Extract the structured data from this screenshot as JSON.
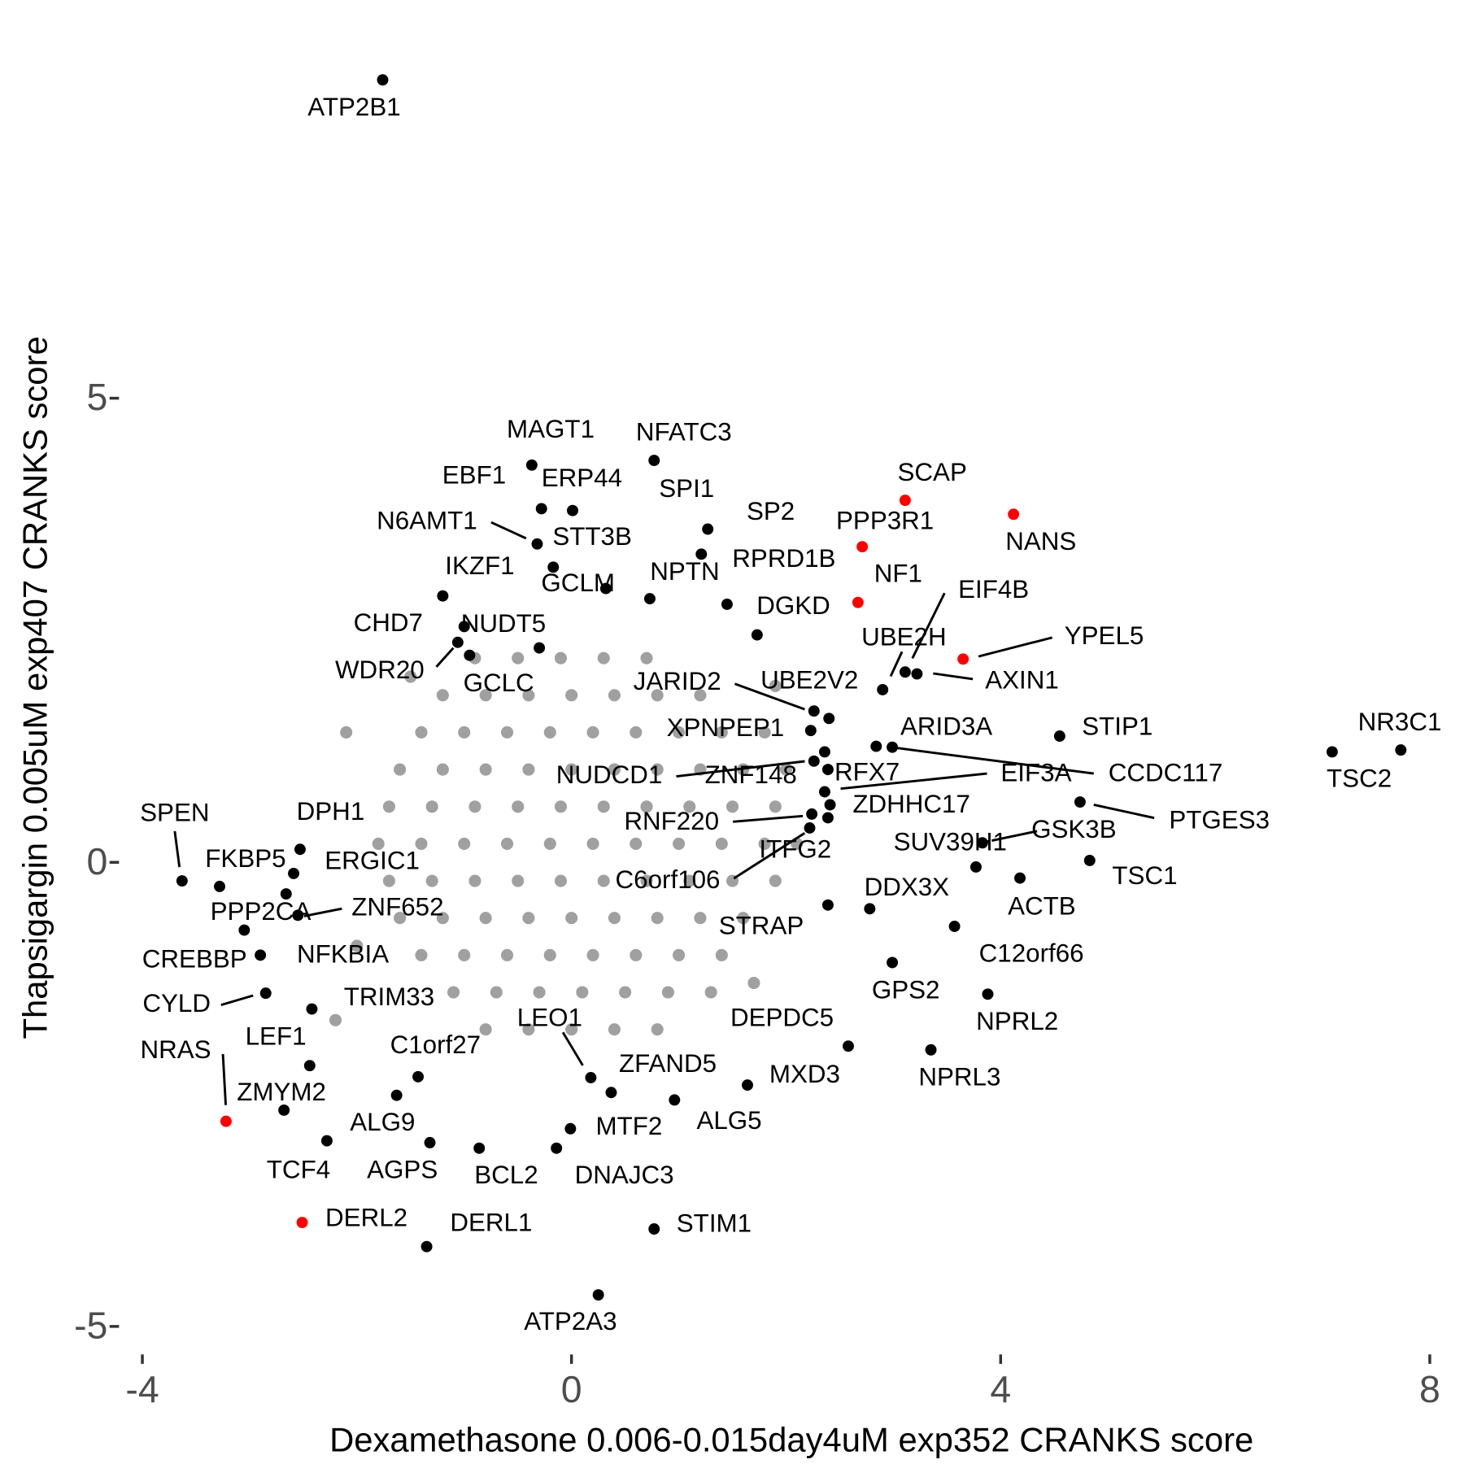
{
  "chart_data": {
    "type": "scatter",
    "x_label": "Dexamethasone 0.006-0.015day4uM exp352 CRANKS score",
    "y_label": "Thapsigargin 0.005uM exp407 CRANKS score",
    "xlim": [
      -4.2,
      8.2
    ],
    "ylim": [
      -5.2,
      8.7
    ],
    "xticks": [
      -4,
      0,
      4,
      8
    ],
    "yticks": [
      -5,
      0,
      5
    ],
    "grid": false,
    "background_points": {
      "color": "#a0a0a0",
      "x": [
        -0.9,
        -0.5,
        -0.1,
        0.3,
        0.7,
        -1.2,
        -0.8,
        -0.4,
        0,
        0.4,
        0.8,
        1.2,
        -1.4,
        -1.0,
        -0.6,
        -0.2,
        0.2,
        0.6,
        1.0,
        1.4,
        1.8,
        -1.6,
        -1.2,
        -0.8,
        -0.4,
        0,
        0.4,
        0.8,
        1.2,
        1.6,
        2.0,
        -1.7,
        -1.3,
        -0.9,
        -0.5,
        -0.1,
        0.3,
        0.7,
        1.1,
        1.5,
        1.9,
        -1.8,
        -1.4,
        -1.0,
        -0.6,
        -0.2,
        0.2,
        0.6,
        1.0,
        1.4,
        1.8,
        2.1,
        -1.7,
        -1.3,
        -0.9,
        -0.5,
        -0.1,
        0.3,
        0.7,
        1.1,
        1.5,
        1.9,
        -1.6,
        -1.2,
        -0.8,
        -0.4,
        0,
        0.4,
        0.8,
        1.2,
        1.6,
        -1.4,
        -1.0,
        -0.6,
        -0.2,
        0.2,
        0.6,
        1.0,
        1.4,
        -1.1,
        -0.7,
        -0.3,
        0.1,
        0.5,
        0.9,
        1.3,
        -0.8,
        -0.4,
        0,
        0.4,
        0.8,
        -2.1,
        -2.2,
        1.7,
        -1.5,
        1.9,
        -2.0
      ],
      "y": [
        2.2,
        2.2,
        2.2,
        2.2,
        2.2,
        1.8,
        1.8,
        1.8,
        1.8,
        1.8,
        1.8,
        1.8,
        1.4,
        1.4,
        1.4,
        1.4,
        1.4,
        1.4,
        1.4,
        1.4,
        1.4,
        1.0,
        1.0,
        1.0,
        1.0,
        1.0,
        1.0,
        1.0,
        1.0,
        1.0,
        1.0,
        0.6,
        0.6,
        0.6,
        0.6,
        0.6,
        0.6,
        0.6,
        0.6,
        0.6,
        0.6,
        0.2,
        0.2,
        0.2,
        0.2,
        0.2,
        0.2,
        0.2,
        0.2,
        0.2,
        0.2,
        0.2,
        -0.2,
        -0.2,
        -0.2,
        -0.2,
        -0.2,
        -0.2,
        -0.2,
        -0.2,
        -0.2,
        -0.2,
        -0.6,
        -0.6,
        -0.6,
        -0.6,
        -0.6,
        -0.6,
        -0.6,
        -0.6,
        -0.6,
        -1.0,
        -1.0,
        -1.0,
        -1.0,
        -1.0,
        -1.0,
        -1.0,
        -1.0,
        -1.4,
        -1.4,
        -1.4,
        -1.4,
        -1.4,
        -1.4,
        -1.4,
        -1.8,
        -1.8,
        -1.8,
        -1.8,
        -1.8,
        1.4,
        -1.7,
        -1.3,
        2.0,
        1.9,
        -0.9
      ]
    },
    "points": [
      {
        "label": "ATP2B1",
        "x": -1.76,
        "y": 8.43,
        "color": "#000000"
      },
      {
        "label": "MAGT1",
        "x": -0.37,
        "y": 4.28,
        "color": "#000000"
      },
      {
        "label": "NFATC3",
        "x": 0.77,
        "y": 4.33,
        "color": "#000000"
      },
      {
        "label": "EBF1",
        "x": -0.28,
        "y": 3.81,
        "color": "#000000"
      },
      {
        "label": "ERP44",
        "x": 0.01,
        "y": 3.79,
        "color": "#000000"
      },
      {
        "label": "SPI1",
        "x": 1.27,
        "y": 3.59,
        "color": "#000000"
      },
      {
        "label": "SP2",
        "x": 1.21,
        "y": 3.32,
        "color": "#000000"
      },
      {
        "label": "N6AMT1",
        "x": -0.32,
        "y": 3.43,
        "color": "#000000"
      },
      {
        "label": "STT3B",
        "x": -0.17,
        "y": 3.18,
        "color": "#000000"
      },
      {
        "label": "SCAP",
        "x": 3.11,
        "y": 3.9,
        "color": "#ff0000"
      },
      {
        "label": "NANS",
        "x": 4.12,
        "y": 3.75,
        "color": "#ff0000"
      },
      {
        "label": "PPP3R1",
        "x": 2.71,
        "y": 3.4,
        "color": "#ff0000"
      },
      {
        "label": "RPRD1B",
        "x": 1.45,
        "y": 2.78,
        "color": "#000000"
      },
      {
        "label": "NF1",
        "x": 2.67,
        "y": 2.8,
        "color": "#ff0000"
      },
      {
        "label": "IKZF1",
        "x": -1.2,
        "y": 2.87,
        "color": "#000000"
      },
      {
        "label": "GCLM",
        "x": 0.32,
        "y": 2.95,
        "color": "#000000"
      },
      {
        "label": "NPTN",
        "x": 0.73,
        "y": 2.84,
        "color": "#000000"
      },
      {
        "label": "DGKD",
        "x": 1.73,
        "y": 2.45,
        "color": "#000000"
      },
      {
        "label": "EIF4B",
        "x": 3.22,
        "y": 2.03,
        "color": "#000000"
      },
      {
        "label": "CHD7",
        "x": -1.0,
        "y": 2.54,
        "color": "#000000"
      },
      {
        "label": "NUDT5",
        "x": -0.95,
        "y": 2.23,
        "color": "#000000"
      },
      {
        "label": "UBE2H",
        "x": 2.9,
        "y": 1.86,
        "color": "#000000"
      },
      {
        "label": "YPEL5",
        "x": 3.65,
        "y": 2.19,
        "color": "#ff0000"
      },
      {
        "label": "WDR20",
        "x": -1.06,
        "y": 2.37,
        "color": "#000000"
      },
      {
        "label": "GCLC",
        "x": -0.3,
        "y": 2.31,
        "color": "#000000"
      },
      {
        "label": "JARID2",
        "x": 2.26,
        "y": 1.63,
        "color": "#000000"
      },
      {
        "label": "UBE2V2",
        "x": 2.4,
        "y": 1.55,
        "color": "#000000"
      },
      {
        "label": "AXIN1",
        "x": 3.11,
        "y": 2.05,
        "color": "#000000"
      },
      {
        "label": "XPNPEP1",
        "x": 2.23,
        "y": 1.42,
        "color": "#000000"
      },
      {
        "label": "ARID3A",
        "x": 2.84,
        "y": 1.25,
        "color": "#000000"
      },
      {
        "label": "STIP1",
        "x": 4.55,
        "y": 1.36,
        "color": "#000000"
      },
      {
        "label": "NR3C1",
        "x": 7.73,
        "y": 1.21,
        "color": "#000000"
      },
      {
        "label": "TSC2",
        "x": 7.09,
        "y": 1.19,
        "color": "#000000"
      },
      {
        "label": "CCDC117",
        "x": 2.99,
        "y": 1.24,
        "color": "#000000"
      },
      {
        "label": "NUDCD1",
        "x": 2.26,
        "y": 1.09,
        "color": "#000000"
      },
      {
        "label": "ZNF148",
        "x": 2.36,
        "y": 1.19,
        "color": "#000000"
      },
      {
        "label": "RFX7",
        "x": 2.39,
        "y": 1.0,
        "color": "#000000"
      },
      {
        "label": "EIF3A",
        "x": 2.36,
        "y": 0.76,
        "color": "#000000"
      },
      {
        "label": "ZDHHC17",
        "x": 2.41,
        "y": 0.62,
        "color": "#000000"
      },
      {
        "label": "PTGES3",
        "x": 4.74,
        "y": 0.65,
        "color": "#000000"
      },
      {
        "label": "RNF220",
        "x": 2.24,
        "y": 0.52,
        "color": "#000000"
      },
      {
        "label": "GSK3B",
        "x": 3.83,
        "y": 0.21,
        "color": "#000000"
      },
      {
        "label": "SUV39H1",
        "x": 3.77,
        "y": -0.05,
        "color": "#000000"
      },
      {
        "label": "ITFG2",
        "x": 2.39,
        "y": 0.48,
        "color": "#000000"
      },
      {
        "label": "C6orf106",
        "x": 2.22,
        "y": 0.37,
        "color": "#000000"
      },
      {
        "label": "TSC1",
        "x": 4.83,
        "y": 0.02,
        "color": "#000000"
      },
      {
        "label": "ACTB",
        "x": 4.18,
        "y": -0.17,
        "color": "#000000"
      },
      {
        "label": "DDX3X",
        "x": 2.78,
        "y": -0.5,
        "color": "#000000"
      },
      {
        "label": "STRAP",
        "x": 2.39,
        "y": -0.46,
        "color": "#000000"
      },
      {
        "label": "C12orf66",
        "x": 3.57,
        "y": -0.69,
        "color": "#000000"
      },
      {
        "label": "GPS2",
        "x": 2.99,
        "y": -1.08,
        "color": "#000000"
      },
      {
        "label": "NPRL2",
        "x": 3.88,
        "y": -1.42,
        "color": "#000000"
      },
      {
        "label": "NPRL3",
        "x": 3.35,
        "y": -2.02,
        "color": "#000000"
      },
      {
        "label": "DEPDC5",
        "x": 2.58,
        "y": -1.98,
        "color": "#000000"
      },
      {
        "label": "MXD3",
        "x": 1.64,
        "y": -2.4,
        "color": "#000000"
      },
      {
        "label": "ALG5",
        "x": 0.96,
        "y": -2.56,
        "color": "#000000"
      },
      {
        "label": "ZFAND5",
        "x": 0.37,
        "y": -2.48,
        "color": "#000000"
      },
      {
        "label": "LEO1",
        "x": 0.18,
        "y": -2.32,
        "color": "#000000"
      },
      {
        "label": "MTF2",
        "x": -0.01,
        "y": -2.87,
        "color": "#000000"
      },
      {
        "label": "DNAJC3",
        "x": -0.14,
        "y": -3.08,
        "color": "#000000"
      },
      {
        "label": "BCL2",
        "x": -0.86,
        "y": -3.08,
        "color": "#000000"
      },
      {
        "label": "AGPS",
        "x": -1.32,
        "y": -3.02,
        "color": "#000000"
      },
      {
        "label": "ALG9",
        "x": -1.63,
        "y": -2.51,
        "color": "#000000"
      },
      {
        "label": "C1orf27",
        "x": -1.43,
        "y": -2.31,
        "color": "#000000"
      },
      {
        "label": "TRIM33",
        "x": -2.42,
        "y": -1.58,
        "color": "#000000"
      },
      {
        "label": "LEF1",
        "x": -2.44,
        "y": -2.19,
        "color": "#000000"
      },
      {
        "label": "NRAS",
        "x": -3.22,
        "y": -2.79,
        "color": "#ff0000"
      },
      {
        "label": "ZMYM2",
        "x": -2.68,
        "y": -2.67,
        "color": "#000000"
      },
      {
        "label": "TCF4",
        "x": -2.28,
        "y": -3.0,
        "color": "#000000"
      },
      {
        "label": "DERL2",
        "x": -2.51,
        "y": -3.88,
        "color": "#ff0000"
      },
      {
        "label": "DERL1",
        "x": -1.35,
        "y": -4.14,
        "color": "#000000"
      },
      {
        "label": "STIM1",
        "x": 0.77,
        "y": -3.95,
        "color": "#000000"
      },
      {
        "label": "ATP2A3",
        "x": 0.25,
        "y": -4.66,
        "color": "#000000"
      },
      {
        "label": "SPEN",
        "x": -3.63,
        "y": -0.2,
        "color": "#000000"
      },
      {
        "label": "FKBP5",
        "x": -3.28,
        "y": -0.26,
        "color": "#000000"
      },
      {
        "label": "DPH1",
        "x": -2.53,
        "y": 0.14,
        "color": "#000000"
      },
      {
        "label": "ERGIC1",
        "x": -2.59,
        "y": -0.12,
        "color": "#000000"
      },
      {
        "label": "PPP2CA",
        "x": -2.66,
        "y": -0.34,
        "color": "#000000"
      },
      {
        "label": "ZNF652",
        "x": -2.55,
        "y": -0.57,
        "color": "#000000"
      },
      {
        "label": "CREBBP",
        "x": -3.05,
        "y": -0.73,
        "color": "#000000"
      },
      {
        "label": "NFKBIA",
        "x": -2.9,
        "y": -1.0,
        "color": "#000000"
      },
      {
        "label": "CYLD",
        "x": -2.85,
        "y": -1.41,
        "color": "#000000"
      }
    ]
  }
}
